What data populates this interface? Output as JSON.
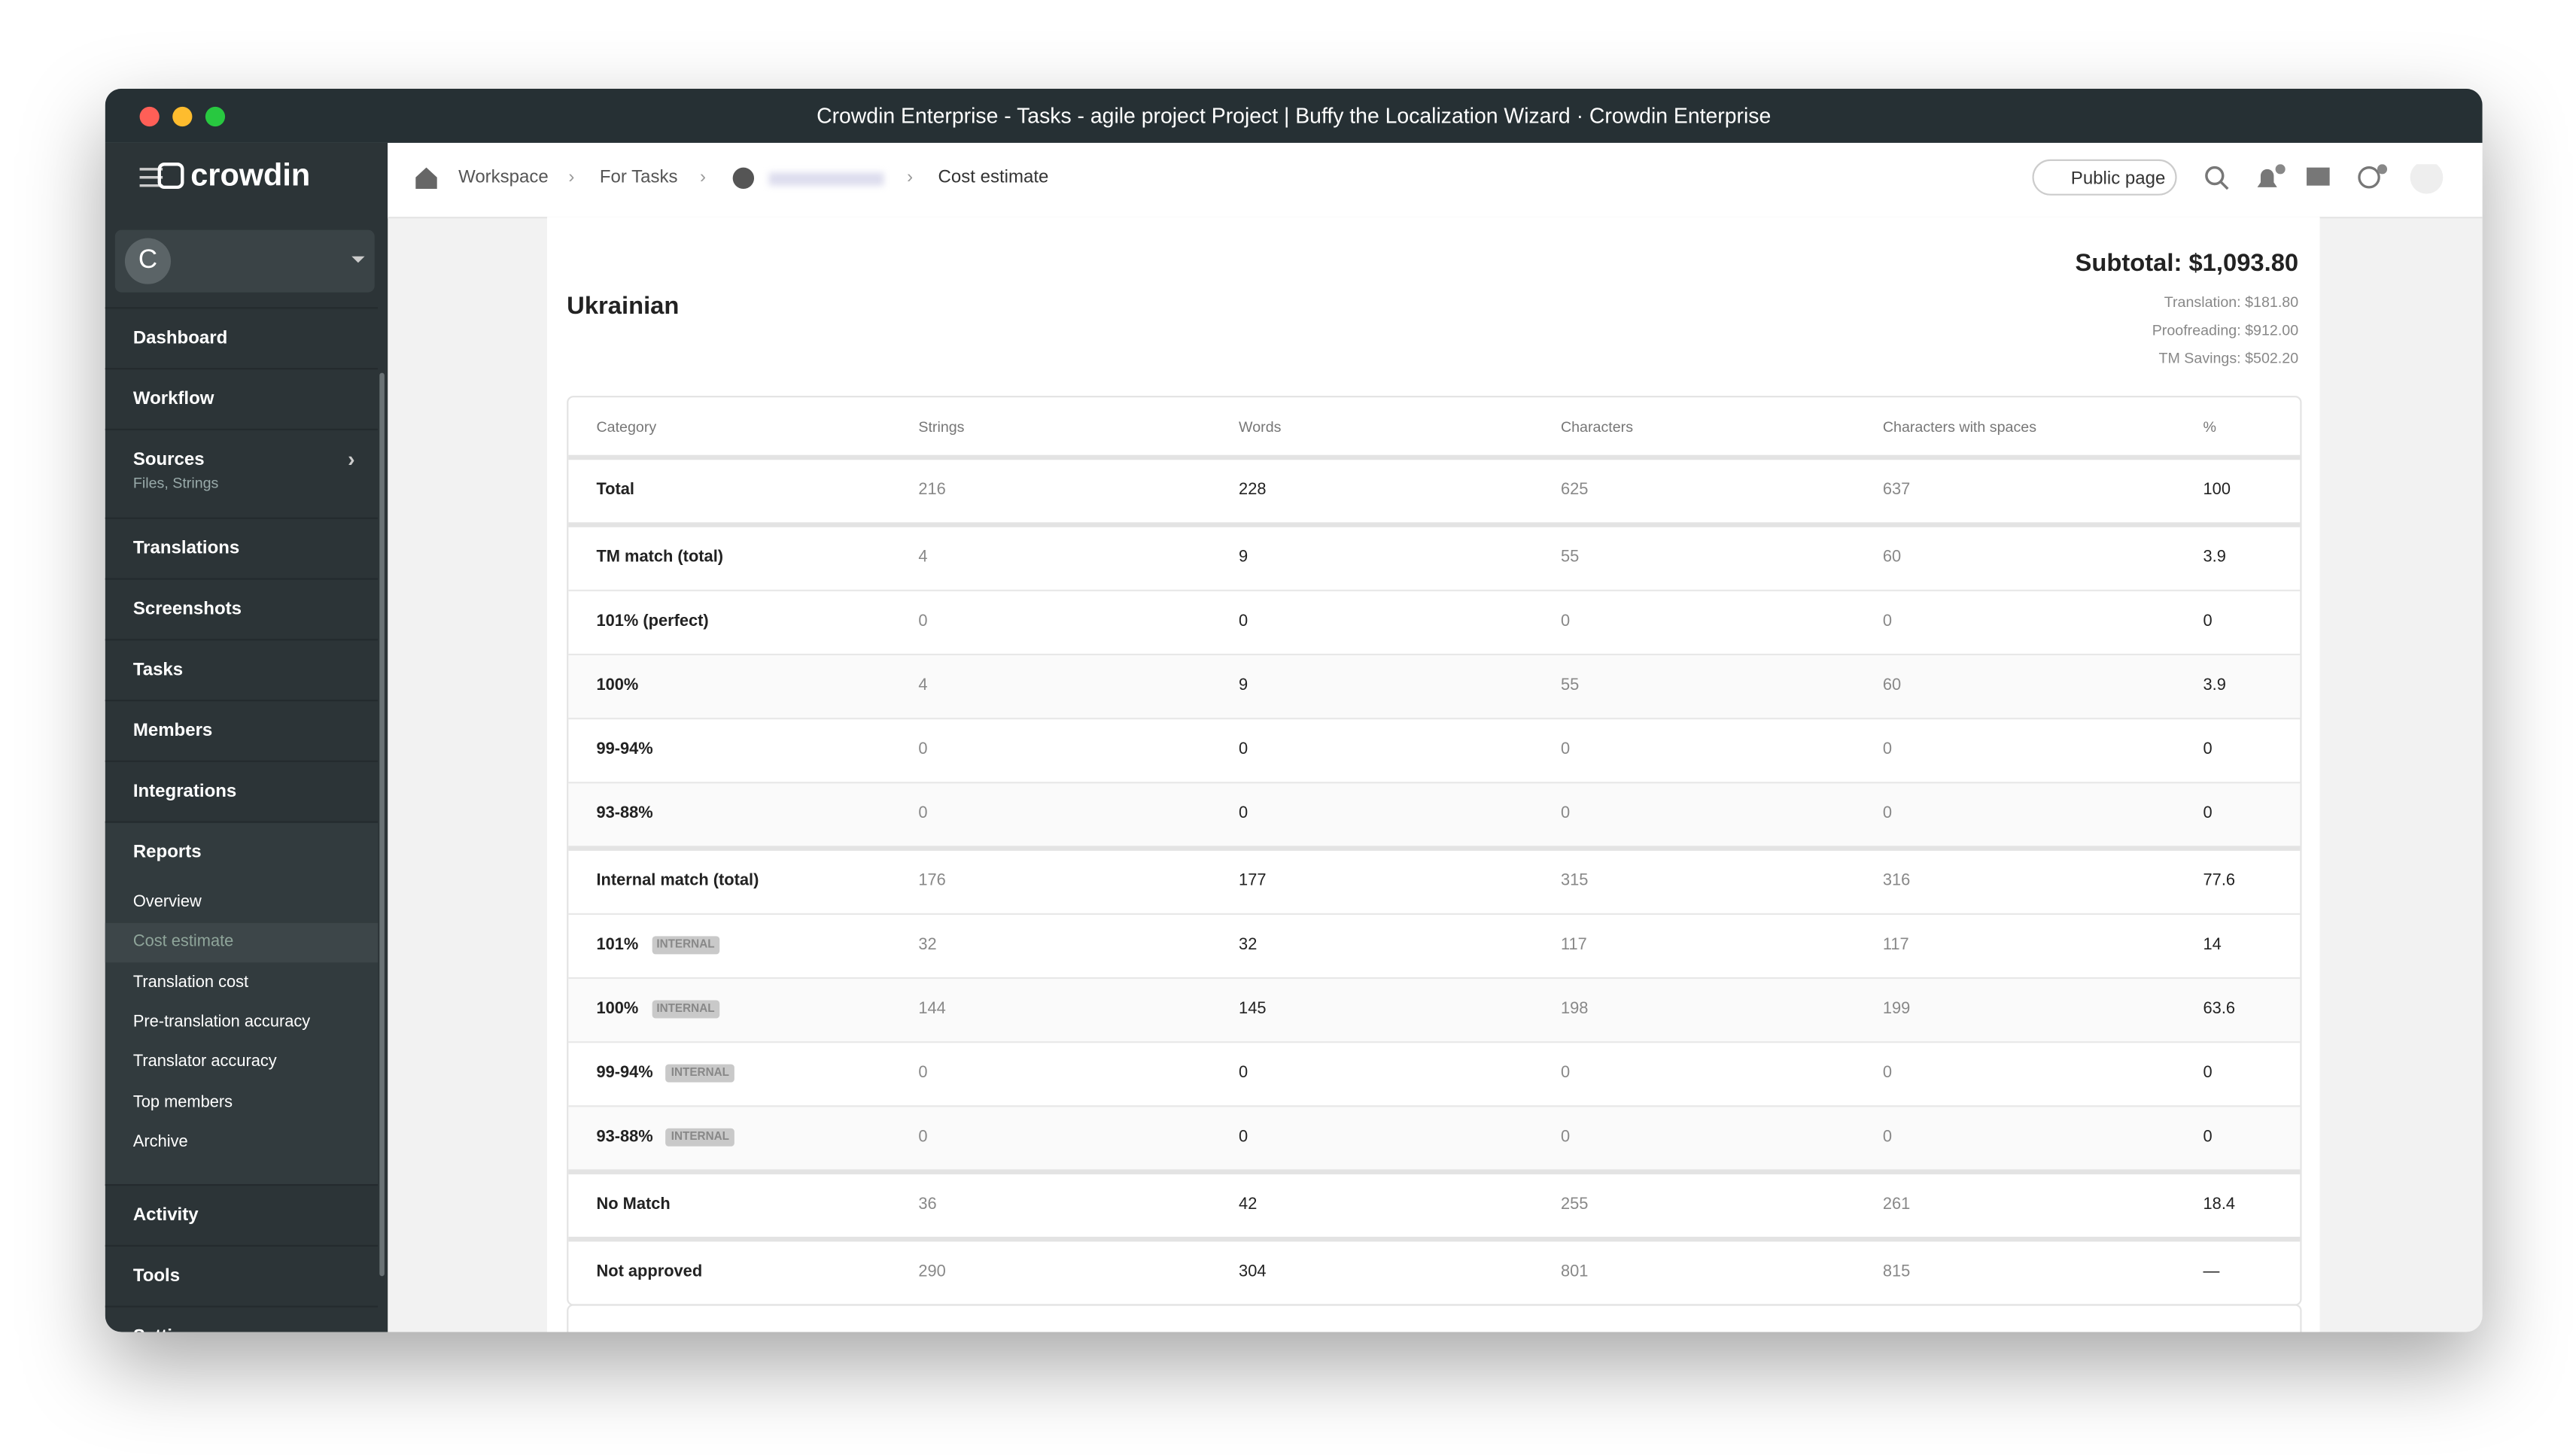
{
  "window_title": "Crowdin Enterprise - Tasks - agile project Project | Buffy the Localization Wizard · Crowdin Enterprise",
  "sidebar": {
    "logo": "crowdin",
    "project_avatar": "C",
    "items": [
      {
        "label": "Dashboard"
      },
      {
        "label": "Workflow"
      },
      {
        "label": "Sources",
        "sub": "Files, Strings"
      },
      {
        "label": "Translations"
      },
      {
        "label": "Screenshots"
      },
      {
        "label": "Tasks"
      },
      {
        "label": "Members"
      },
      {
        "label": "Integrations"
      },
      {
        "label": "Reports",
        "children": [
          "Overview",
          "Cost estimate",
          "Translation cost",
          "Pre-translation accuracy",
          "Translator accuracy",
          "Top members",
          "Archive"
        ]
      },
      {
        "label": "Activity"
      },
      {
        "label": "Tools"
      },
      {
        "label": "Settings"
      }
    ]
  },
  "breadcrumb": [
    "Workspace",
    "For Tasks",
    "Cost estimate"
  ],
  "header": {
    "public_page": "Public page"
  },
  "report": {
    "language": "Ukrainian",
    "subtotal": "Subtotal: $1,093.80",
    "lines": [
      "Translation: $181.80",
      "Proofreading: $912.00",
      "TM Savings: $502.20"
    ]
  },
  "table": {
    "columns": [
      "Category",
      "Strings",
      "Words",
      "Characters",
      "Characters with spaces",
      "%"
    ],
    "groups": [
      [
        {
          "category": "Total",
          "cells": [
            216,
            228,
            625,
            637,
            100
          ]
        }
      ],
      [
        {
          "category": "TM match (total)",
          "cells": [
            4,
            9,
            55,
            60,
            3.9
          ]
        },
        {
          "category": "101% (perfect)",
          "cells": [
            0,
            0,
            0,
            0,
            0
          ]
        },
        {
          "category": "100%",
          "cells": [
            4,
            9,
            55,
            60,
            3.9
          ]
        },
        {
          "category": "99-94%",
          "cells": [
            0,
            0,
            0,
            0,
            0
          ]
        },
        {
          "category": "93-88%",
          "cells": [
            0,
            0,
            0,
            0,
            0
          ]
        }
      ],
      [
        {
          "category": "Internal match (total)",
          "cells": [
            176,
            177,
            315,
            316,
            77.6
          ]
        },
        {
          "category": "101%",
          "tag": "INTERNAL",
          "cells": [
            32,
            32,
            117,
            117,
            14
          ]
        },
        {
          "category": "100%",
          "tag": "INTERNAL",
          "cells": [
            144,
            145,
            198,
            199,
            63.6
          ]
        },
        {
          "category": "99-94%",
          "tag": "INTERNAL",
          "cells": [
            0,
            0,
            0,
            0,
            0
          ]
        },
        {
          "category": "93-88%",
          "tag": "INTERNAL",
          "cells": [
            0,
            0,
            0,
            0,
            0
          ]
        }
      ],
      [
        {
          "category": "No Match",
          "cells": [
            36,
            42,
            255,
            261,
            18.4
          ]
        }
      ],
      [
        {
          "category": "Not approved",
          "cells": [
            290,
            304,
            801,
            815,
            "—"
          ]
        }
      ]
    ]
  }
}
